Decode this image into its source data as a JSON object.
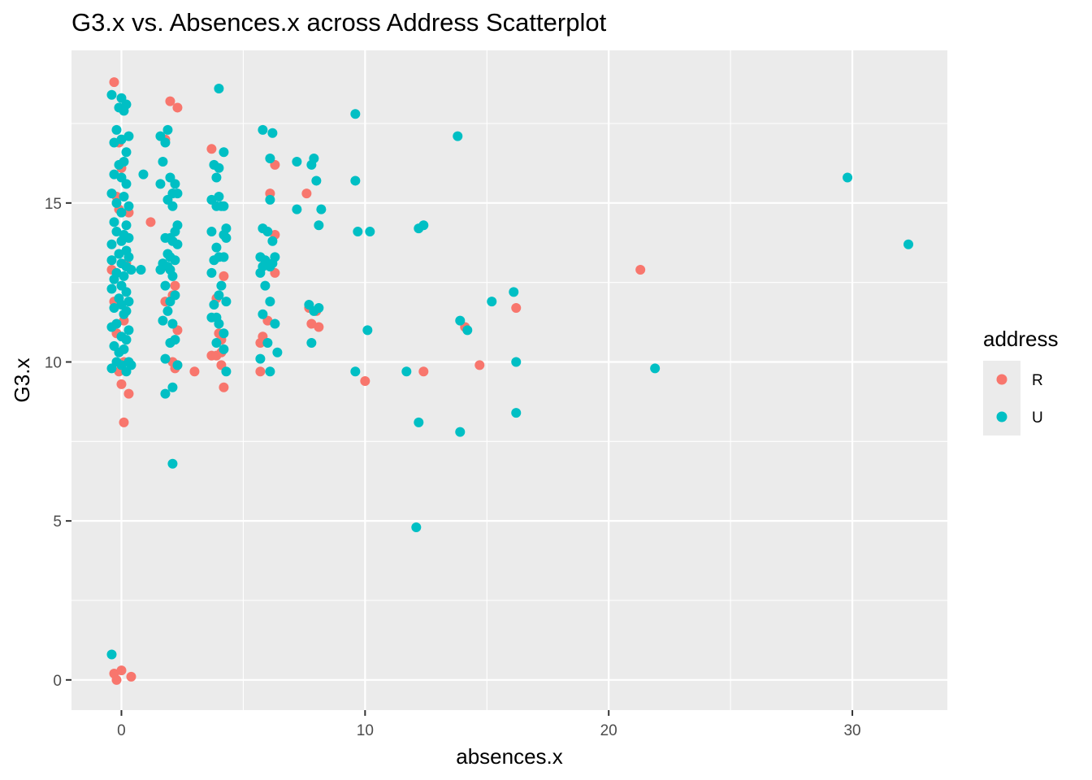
{
  "chart_data": {
    "type": "scatter",
    "title": "G3.x vs. Absences.x across Address Scatterplot",
    "xlabel": "absences.x",
    "ylabel": "G3.x",
    "xlim": [
      -2.05,
      33.9
    ],
    "ylim": [
      -0.95,
      19.8
    ],
    "x_ticks": [
      0,
      10,
      20,
      30
    ],
    "x_tick_labels": [
      "0",
      "10",
      "20",
      "30"
    ],
    "y_ticks": [
      0,
      5,
      10,
      15
    ],
    "y_tick_labels": [
      "0",
      "5",
      "10",
      "15"
    ],
    "grid": true,
    "legend": {
      "title": "address",
      "position": "right"
    },
    "series": [
      {
        "name": "R",
        "color": "#F8766D",
        "points": [
          [
            -0.3,
            18.8
          ],
          [
            -0.1,
            16.9
          ],
          [
            0.0,
            16.1
          ],
          [
            -0.2,
            15.2
          ],
          [
            -0.1,
            14.8
          ],
          [
            0.3,
            14.7
          ],
          [
            -0.4,
            12.9
          ],
          [
            0.2,
            13.1
          ],
          [
            -0.3,
            11.9
          ],
          [
            0.1,
            11.3
          ],
          [
            -0.2,
            10.9
          ],
          [
            0.1,
            10.0
          ],
          [
            -0.1,
            9.7
          ],
          [
            0.0,
            9.3
          ],
          [
            0.3,
            9.0
          ],
          [
            0.1,
            8.1
          ],
          [
            -0.3,
            0.2
          ],
          [
            0.0,
            0.3
          ],
          [
            0.4,
            0.1
          ],
          [
            -0.2,
            0.0
          ],
          [
            1.2,
            14.4
          ],
          [
            1.8,
            17.0
          ],
          [
            2.0,
            18.2
          ],
          [
            2.3,
            18.0
          ],
          [
            1.8,
            11.9
          ],
          [
            2.1,
            12.1
          ],
          [
            2.2,
            12.4
          ],
          [
            2.3,
            11.0
          ],
          [
            2.1,
            10.0
          ],
          [
            2.3,
            9.9
          ],
          [
            2.2,
            9.8
          ],
          [
            3.0,
            9.7
          ],
          [
            3.7,
            16.7
          ],
          [
            3.9,
            12.0
          ],
          [
            4.0,
            10.9
          ],
          [
            4.1,
            10.7
          ],
          [
            4.2,
            12.7
          ],
          [
            3.7,
            10.2
          ],
          [
            3.9,
            10.2
          ],
          [
            4.1,
            9.9
          ],
          [
            4.1,
            10.3
          ],
          [
            4.2,
            9.2
          ],
          [
            6.1,
            15.3
          ],
          [
            6.3,
            16.2
          ],
          [
            6.3,
            14.0
          ],
          [
            6.3,
            12.8
          ],
          [
            6.0,
            11.3
          ],
          [
            5.8,
            10.8
          ],
          [
            5.7,
            10.6
          ],
          [
            5.7,
            9.7
          ],
          [
            7.6,
            15.3
          ],
          [
            7.7,
            11.7
          ],
          [
            7.8,
            11.2
          ],
          [
            8.1,
            11.1
          ],
          [
            8.0,
            11.6
          ],
          [
            10.0,
            9.4
          ],
          [
            12.4,
            9.7
          ],
          [
            14.1,
            11.1
          ],
          [
            14.7,
            9.9
          ],
          [
            16.2,
            11.7
          ],
          [
            21.3,
            12.9
          ]
        ]
      },
      {
        "name": "U",
        "color": "#00BFC4",
        "points": [
          [
            -0.4,
            18.4
          ],
          [
            0.0,
            18.3
          ],
          [
            -0.1,
            18.0
          ],
          [
            0.2,
            18.1
          ],
          [
            0.1,
            17.9
          ],
          [
            -0.2,
            17.3
          ],
          [
            0.3,
            17.1
          ],
          [
            0.0,
            17.0
          ],
          [
            -0.3,
            16.9
          ],
          [
            0.2,
            16.6
          ],
          [
            0.1,
            16.3
          ],
          [
            -0.1,
            16.2
          ],
          [
            -0.3,
            15.9
          ],
          [
            0.0,
            15.8
          ],
          [
            0.2,
            15.6
          ],
          [
            -0.4,
            15.3
          ],
          [
            0.1,
            15.2
          ],
          [
            -0.2,
            15.0
          ],
          [
            0.3,
            14.9
          ],
          [
            0.0,
            14.7
          ],
          [
            -0.3,
            14.4
          ],
          [
            0.2,
            14.3
          ],
          [
            0.1,
            14.0
          ],
          [
            -0.2,
            14.1
          ],
          [
            0.3,
            13.9
          ],
          [
            0.0,
            13.8
          ],
          [
            -0.4,
            13.7
          ],
          [
            0.2,
            13.5
          ],
          [
            -0.1,
            13.4
          ],
          [
            0.3,
            13.3
          ],
          [
            -0.4,
            13.2
          ],
          [
            0.0,
            13.1
          ],
          [
            0.2,
            13.0
          ],
          [
            -0.2,
            12.8
          ],
          [
            0.4,
            12.9
          ],
          [
            0.1,
            12.7
          ],
          [
            -0.3,
            12.6
          ],
          [
            0.0,
            12.4
          ],
          [
            -0.4,
            12.3
          ],
          [
            0.2,
            12.2
          ],
          [
            -0.1,
            12.0
          ],
          [
            0.3,
            11.9
          ],
          [
            0.0,
            11.8
          ],
          [
            -0.3,
            11.7
          ],
          [
            0.2,
            11.6
          ],
          [
            0.1,
            11.5
          ],
          [
            -0.2,
            11.2
          ],
          [
            0.3,
            11.0
          ],
          [
            -0.4,
            11.1
          ],
          [
            0.0,
            10.8
          ],
          [
            0.2,
            10.7
          ],
          [
            -0.3,
            10.5
          ],
          [
            0.1,
            10.4
          ],
          [
            -0.1,
            10.3
          ],
          [
            0.3,
            10.0
          ],
          [
            0.0,
            9.9
          ],
          [
            -0.4,
            9.8
          ],
          [
            0.2,
            9.7
          ],
          [
            -0.2,
            10.0
          ],
          [
            0.4,
            9.9
          ],
          [
            0.9,
            15.9
          ],
          [
            0.8,
            12.9
          ],
          [
            -0.4,
            0.8
          ],
          [
            1.6,
            17.1
          ],
          [
            1.9,
            17.3
          ],
          [
            1.8,
            16.9
          ],
          [
            1.7,
            16.3
          ],
          [
            2.0,
            15.8
          ],
          [
            2.2,
            15.6
          ],
          [
            1.6,
            15.6
          ],
          [
            2.1,
            15.3
          ],
          [
            2.3,
            15.3
          ],
          [
            1.9,
            15.1
          ],
          [
            2.1,
            14.9
          ],
          [
            2.3,
            14.3
          ],
          [
            2.2,
            14.1
          ],
          [
            1.8,
            13.9
          ],
          [
            2.0,
            13.9
          ],
          [
            2.1,
            13.8
          ],
          [
            2.3,
            13.7
          ],
          [
            1.9,
            13.4
          ],
          [
            2.0,
            13.3
          ],
          [
            1.7,
            13.1
          ],
          [
            2.2,
            13.2
          ],
          [
            1.9,
            13.0
          ],
          [
            2.0,
            12.9
          ],
          [
            1.6,
            12.9
          ],
          [
            2.1,
            12.7
          ],
          [
            1.8,
            12.4
          ],
          [
            2.2,
            12.1
          ],
          [
            2.0,
            11.9
          ],
          [
            1.9,
            11.6
          ],
          [
            1.7,
            11.3
          ],
          [
            2.1,
            11.2
          ],
          [
            2.2,
            10.7
          ],
          [
            2.0,
            10.6
          ],
          [
            1.8,
            10.1
          ],
          [
            2.3,
            9.9
          ],
          [
            2.1,
            9.2
          ],
          [
            1.8,
            9.0
          ],
          [
            2.1,
            6.8
          ],
          [
            4.0,
            18.6
          ],
          [
            4.2,
            16.6
          ],
          [
            3.8,
            16.2
          ],
          [
            4.0,
            16.1
          ],
          [
            3.9,
            15.8
          ],
          [
            3.7,
            15.1
          ],
          [
            4.0,
            15.2
          ],
          [
            3.9,
            14.9
          ],
          [
            4.1,
            14.9
          ],
          [
            4.2,
            14.9
          ],
          [
            4.3,
            14.2
          ],
          [
            3.7,
            14.1
          ],
          [
            4.2,
            14.0
          ],
          [
            4.3,
            13.9
          ],
          [
            3.9,
            13.6
          ],
          [
            4.0,
            13.3
          ],
          [
            3.8,
            13.2
          ],
          [
            4.2,
            13.3
          ],
          [
            3.7,
            12.8
          ],
          [
            4.1,
            12.4
          ],
          [
            4.0,
            12.1
          ],
          [
            3.8,
            11.8
          ],
          [
            4.3,
            11.9
          ],
          [
            3.7,
            11.4
          ],
          [
            3.9,
            11.4
          ],
          [
            4.0,
            11.2
          ],
          [
            4.2,
            10.9
          ],
          [
            3.9,
            10.6
          ],
          [
            4.2,
            10.4
          ],
          [
            4.3,
            9.7
          ],
          [
            5.8,
            17.3
          ],
          [
            6.2,
            17.2
          ],
          [
            6.1,
            16.4
          ],
          [
            5.8,
            14.2
          ],
          [
            6.0,
            14.1
          ],
          [
            6.2,
            13.8
          ],
          [
            5.7,
            13.3
          ],
          [
            5.9,
            13.2
          ],
          [
            6.2,
            13.1
          ],
          [
            6.1,
            13.0
          ],
          [
            5.8,
            13.0
          ],
          [
            6.3,
            13.3
          ],
          [
            5.7,
            12.8
          ],
          [
            5.9,
            12.4
          ],
          [
            6.1,
            11.9
          ],
          [
            5.8,
            11.5
          ],
          [
            6.3,
            11.2
          ],
          [
            6.0,
            10.6
          ],
          [
            6.4,
            10.3
          ],
          [
            5.7,
            10.1
          ],
          [
            6.1,
            9.7
          ],
          [
            6.1,
            15.1
          ],
          [
            7.2,
            16.3
          ],
          [
            7.9,
            16.4
          ],
          [
            7.8,
            16.2
          ],
          [
            8.0,
            15.7
          ],
          [
            8.2,
            14.8
          ],
          [
            7.2,
            14.8
          ],
          [
            8.1,
            14.3
          ],
          [
            7.7,
            11.8
          ],
          [
            7.9,
            11.6
          ],
          [
            8.1,
            11.7
          ],
          [
            7.8,
            10.6
          ],
          [
            9.6,
            17.8
          ],
          [
            9.6,
            15.7
          ],
          [
            9.7,
            14.1
          ],
          [
            10.2,
            14.1
          ],
          [
            10.1,
            11.0
          ],
          [
            9.6,
            9.7
          ],
          [
            11.7,
            9.7
          ],
          [
            12.2,
            14.2
          ],
          [
            12.4,
            14.3
          ],
          [
            12.2,
            8.1
          ],
          [
            12.1,
            4.8
          ],
          [
            13.8,
            17.1
          ],
          [
            13.9,
            11.3
          ],
          [
            14.2,
            11.0
          ],
          [
            13.9,
            7.8
          ],
          [
            15.2,
            11.9
          ],
          [
            16.1,
            12.2
          ],
          [
            16.2,
            10.0
          ],
          [
            16.2,
            8.4
          ],
          [
            21.9,
            9.8
          ],
          [
            29.8,
            15.8
          ],
          [
            32.3,
            13.7
          ]
        ]
      }
    ]
  }
}
